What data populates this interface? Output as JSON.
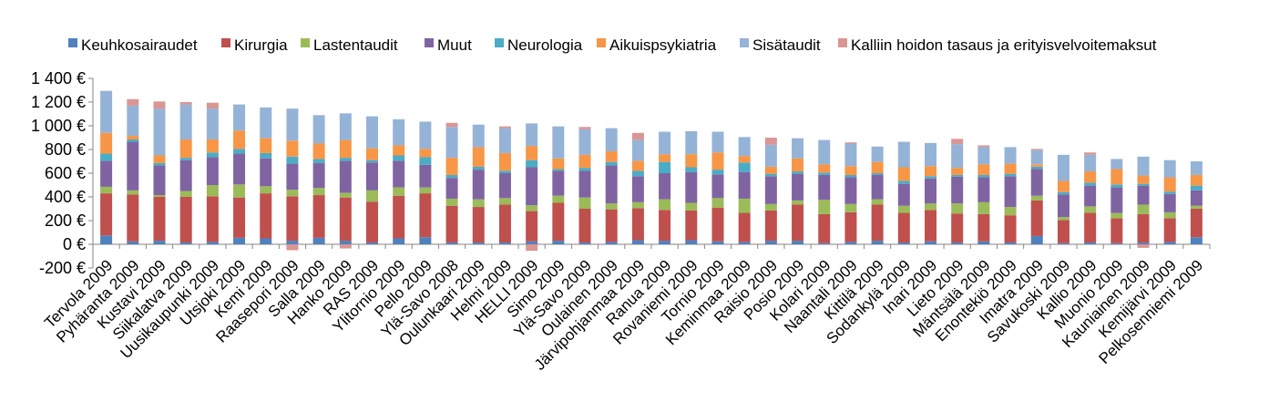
{
  "chart_data": {
    "type": "stacked-bar",
    "title": "",
    "xlabel": "",
    "ylabel": "",
    "ylim": [
      -200,
      1400
    ],
    "ytick_step": 200,
    "yticks": [
      "1 400 €",
      "1 200 €",
      "1 000 €",
      "800 €",
      "600 €",
      "400 €",
      "200 €",
      "0 €",
      "-200 €"
    ],
    "legend_position": "top",
    "categories": [
      "Tervola 2009",
      "Pyhäranta 2009",
      "Kustavi 2009",
      "Siikalatva 2009",
      "Uusikaupunki 2009",
      "Utsjoki 2009",
      "Kemi 2009",
      "Raasepori 2009",
      "Salla 2009",
      "Hanko 2009",
      "RAS 2009",
      "Ylitornio 2009",
      "Pello 2009",
      "Ylä-Savo 2008",
      "Oulunkaari 2009",
      "Helmi 2009",
      "HELLI 2009",
      "Simo 2009",
      "Ylä-Savo 2009",
      "Oulainen 2009",
      "Järvipohjanmaa 2009",
      "Ranua 2009",
      "Rovaniemi 2009",
      "Tornio 2009",
      "Keminmaa 2009",
      "Raisio 2009",
      "Posio 2009",
      "Kolari 2009",
      "Naantali 2009",
      "Kittilä 2009",
      "Sodankylä 2009",
      "Inari 2009",
      "Lieto 2009",
      "Mäntsälä 2009",
      "Enontekiö 2009",
      "Imatra 2009",
      "Savukoski 2009",
      "Kallio 2009",
      "Muonio 2009",
      "Kauniainen 2009",
      "Kemijärvi 2009",
      "Pelkosenniemi 2009"
    ],
    "series": [
      {
        "name": "Keuhkosairaudet",
        "color": "#4F81BD",
        "values": [
          75,
          25,
          30,
          15,
          20,
          55,
          50,
          30,
          55,
          30,
          15,
          50,
          60,
          15,
          15,
          15,
          25,
          30,
          15,
          20,
          35,
          30,
          35,
          25,
          20,
          30,
          30,
          10,
          20,
          30,
          15,
          25,
          15,
          25,
          15,
          70,
          10,
          15,
          10,
          15,
          20,
          60
        ]
      },
      {
        "name": "Kirurgia",
        "color": "#C0504D",
        "values": [
          355,
          395,
          370,
          385,
          385,
          340,
          380,
          375,
          360,
          365,
          345,
          360,
          370,
          310,
          300,
          320,
          255,
          320,
          285,
          275,
          270,
          260,
          250,
          285,
          245,
          255,
          305,
          245,
          250,
          305,
          250,
          265,
          245,
          230,
          230,
          300,
          195,
          250,
          210,
          240,
          200,
          240
        ]
      },
      {
        "name": "Lastentaudit",
        "color": "#9BBB59",
        "values": [
          55,
          35,
          15,
          50,
          95,
          110,
          60,
          55,
          60,
          40,
          95,
          70,
          50,
          60,
          65,
          55,
          50,
          60,
          95,
          50,
          50,
          90,
          65,
          80,
          120,
          55,
          35,
          120,
          70,
          45,
          60,
          55,
          85,
          100,
          70,
          40,
          25,
          55,
          45,
          80,
          50,
          25
        ]
      },
      {
        "name": "Muut",
        "color": "#8064A2",
        "values": [
          220,
          410,
          250,
          260,
          235,
          260,
          235,
          220,
          210,
          270,
          235,
          225,
          190,
          175,
          250,
          210,
          320,
          210,
          225,
          320,
          220,
          220,
          260,
          200,
          225,
          235,
          225,
          210,
          225,
          205,
          185,
          210,
          225,
          210,
          260,
          225,
          190,
          175,
          215,
          160,
          155,
          130
        ]
      },
      {
        "name": "Neurologia",
        "color": "#4BACC6",
        "values": [
          60,
          20,
          20,
          20,
          40,
          40,
          45,
          60,
          35,
          25,
          20,
          45,
          65,
          25,
          25,
          20,
          60,
          15,
          25,
          30,
          45,
          95,
          40,
          40,
          80,
          20,
          20,
          20,
          20,
          15,
          25,
          20,
          15,
          20,
          20,
          20,
          20,
          25,
          25,
          15,
          20,
          40
        ]
      },
      {
        "name": "Aikuispsykiatria",
        "color": "#F79646",
        "values": [
          175,
          30,
          65,
          155,
          110,
          155,
          125,
          135,
          130,
          150,
          100,
          85,
          70,
          145,
          165,
          150,
          120,
          90,
          110,
          90,
          85,
          65,
          110,
          145,
          55,
          60,
          110,
          70,
          75,
          95,
          115,
          85,
          60,
          90,
          85,
          20,
          95,
          95,
          130,
          70,
          120,
          90
        ]
      },
      {
        "name": "Sisätaudit",
        "color": "#95B3D7",
        "values": [
          355,
          255,
          395,
          295,
          260,
          220,
          260,
          270,
          240,
          225,
          270,
          220,
          230,
          260,
          190,
          210,
          190,
          270,
          215,
          195,
          175,
          190,
          195,
          175,
          160,
          185,
          170,
          205,
          190,
          130,
          215,
          195,
          200,
          145,
          140,
          120,
          220,
          140,
          85,
          160,
          145,
          115
        ]
      },
      {
        "name": "Kalliin hoidon tasaus ja erityisvelvoitemaksut",
        "color": "#D99694",
        "values": [
          0,
          55,
          60,
          20,
          50,
          0,
          0,
          -50,
          0,
          -35,
          0,
          0,
          0,
          35,
          0,
          15,
          -55,
          0,
          20,
          0,
          60,
          0,
          0,
          0,
          0,
          60,
          0,
          0,
          10,
          0,
          0,
          0,
          45,
          15,
          0,
          10,
          0,
          20,
          0,
          -30,
          0,
          0
        ]
      }
    ]
  }
}
